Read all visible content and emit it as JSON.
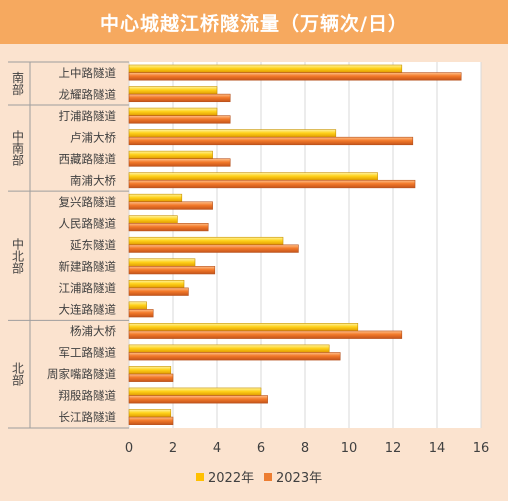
{
  "chart_data": {
    "type": "bar",
    "orientation": "horizontal",
    "title": "中心城越江桥隧流量（万辆次/日）",
    "categories": [
      "上中路隧道",
      "龙耀路隧道",
      "打浦路隧道",
      "卢浦大桥",
      "西藏路隧道",
      "南浦大桥",
      "复兴路隧道",
      "人民路隧道",
      "延东隧道",
      "新建路隧道",
      "江浦路隧道",
      "大连路隧道",
      "杨浦大桥",
      "军工路隧道",
      "周家嘴路隧道",
      "翔殷路隧道",
      "长江路隧道"
    ],
    "groups": [
      {
        "label": "南部",
        "categories": [
          "上中路隧道",
          "龙耀路隧道"
        ]
      },
      {
        "label": "中南部",
        "categories": [
          "打浦路隧道",
          "卢浦大桥",
          "西藏路隧道",
          "南浦大桥"
        ]
      },
      {
        "label": "中北部",
        "categories": [
          "复兴路隧道",
          "人民路隧道",
          "延东隧道",
          "新建路隧道",
          "江浦路隧道",
          "大连路隧道"
        ]
      },
      {
        "label": "北部",
        "categories": [
          "杨浦大桥",
          "军工路隧道",
          "周家嘴路隧道",
          "翔殷路隧道",
          "长江路隧道"
        ]
      }
    ],
    "series": [
      {
        "name": "2022年",
        "color": "#ffc000",
        "values": [
          12.4,
          4.0,
          4.0,
          9.4,
          3.8,
          11.3,
          2.4,
          2.2,
          7.0,
          3.0,
          2.5,
          0.8,
          10.4,
          9.1,
          1.9,
          6.0,
          1.9
        ]
      },
      {
        "name": "2023年",
        "color": "#ed7d31",
        "values": [
          15.1,
          4.6,
          4.6,
          12.9,
          4.6,
          13.0,
          3.8,
          3.6,
          7.7,
          3.9,
          2.7,
          1.1,
          12.4,
          9.6,
          2.0,
          6.3,
          2.0
        ]
      }
    ],
    "xlim": [
      0,
      16
    ],
    "xticks": [
      0,
      2,
      4,
      6,
      8,
      10,
      12,
      14,
      16
    ],
    "grid": true,
    "legend_position": "bottom"
  }
}
